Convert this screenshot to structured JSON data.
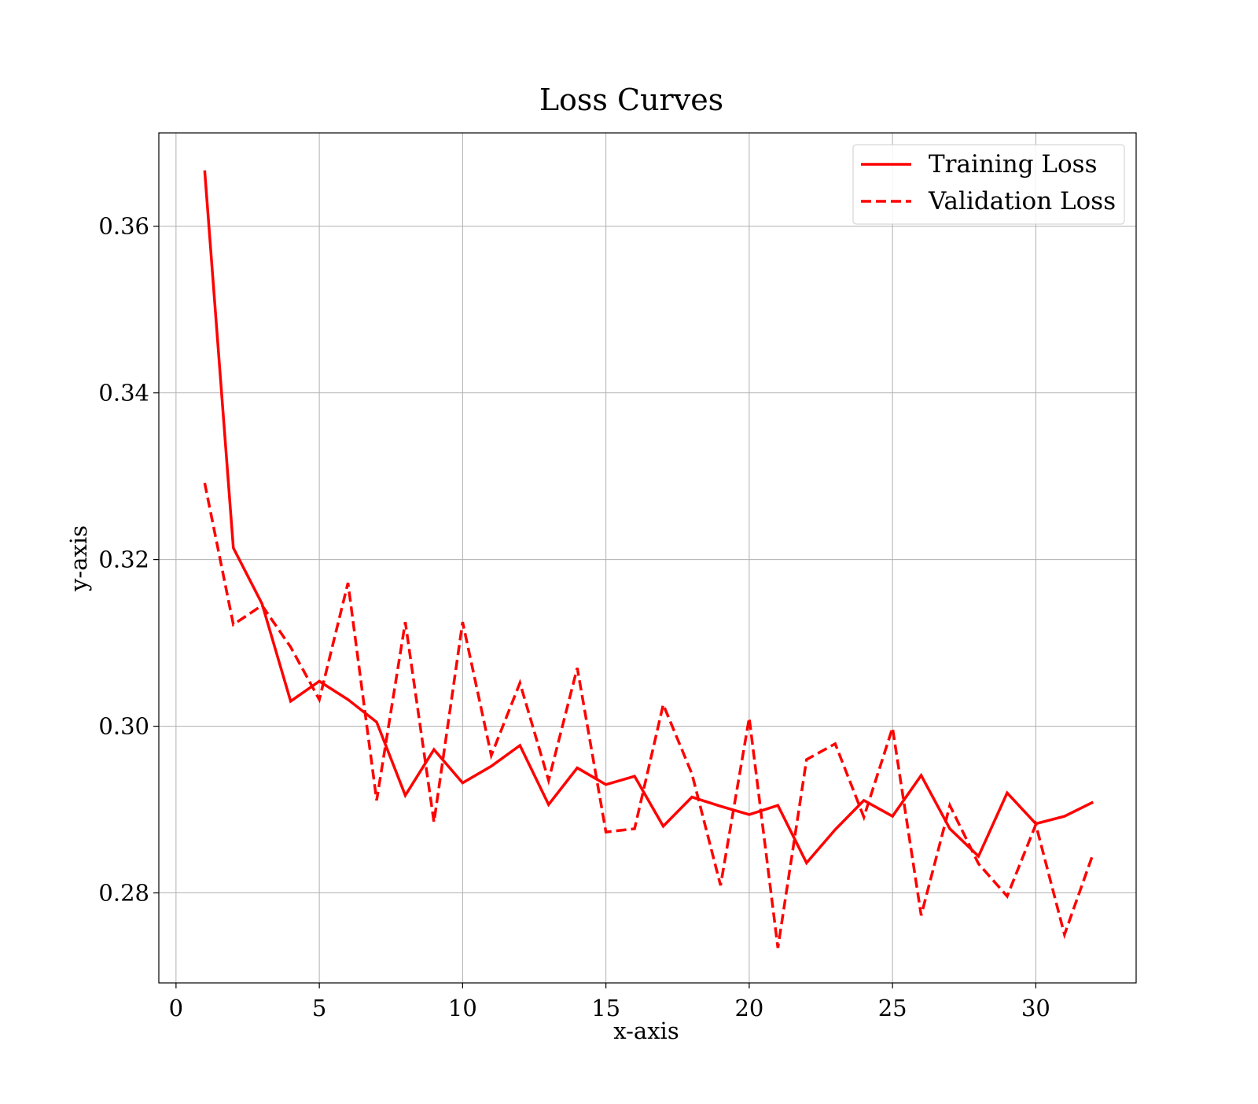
{
  "chart_data": {
    "type": "line",
    "title": "Loss Curves",
    "xlabel": "x-axis",
    "ylabel": "y-axis",
    "xlim": [
      -0.6,
      33.5
    ],
    "ylim": [
      0.2692,
      0.3712
    ],
    "xticks": [
      0,
      5,
      10,
      15,
      20,
      25,
      30
    ],
    "yticks": [
      0.28,
      0.3,
      0.32,
      0.34,
      0.36
    ],
    "xtick_labels": [
      "0",
      "5",
      "10",
      "15",
      "20",
      "25",
      "30"
    ],
    "ytick_labels": [
      "0.28",
      "0.30",
      "0.32",
      "0.34",
      "0.36"
    ],
    "grid": true,
    "legend_position": "top-right",
    "x": [
      1,
      2,
      3,
      4,
      5,
      6,
      7,
      8,
      9,
      10,
      11,
      12,
      13,
      14,
      15,
      16,
      17,
      18,
      19,
      20,
      21,
      22,
      23,
      24,
      25,
      26,
      27,
      28,
      29,
      30,
      31,
      32
    ],
    "series": [
      {
        "name": "Training Loss",
        "color": "#ff0000",
        "linestyle": "solid",
        "values": [
          0.3667,
          0.3214,
          0.3147,
          0.303,
          0.3054,
          0.3032,
          0.3005,
          0.2917,
          0.2972,
          0.2932,
          0.2952,
          0.2977,
          0.2906,
          0.295,
          0.293,
          0.294,
          0.288,
          0.2915,
          0.2904,
          0.2894,
          0.2905,
          0.2836,
          0.2876,
          0.2911,
          0.2892,
          0.2941,
          0.2877,
          0.2844,
          0.292,
          0.2883,
          0.2892,
          0.2909
        ]
      },
      {
        "name": "Validation Loss",
        "color": "#ff0000",
        "linestyle": "dashed",
        "values": [
          0.3292,
          0.3122,
          0.3145,
          0.3095,
          0.3032,
          0.3172,
          0.2911,
          0.3125,
          0.2885,
          0.3125,
          0.2965,
          0.3052,
          0.2935,
          0.307,
          0.2873,
          0.2877,
          0.3026,
          0.2943,
          0.2809,
          0.301,
          0.2734,
          0.296,
          0.2979,
          0.2891,
          0.2998,
          0.2773,
          0.2905,
          0.2835,
          0.2796,
          0.2882,
          0.275,
          0.2847
        ]
      }
    ]
  }
}
